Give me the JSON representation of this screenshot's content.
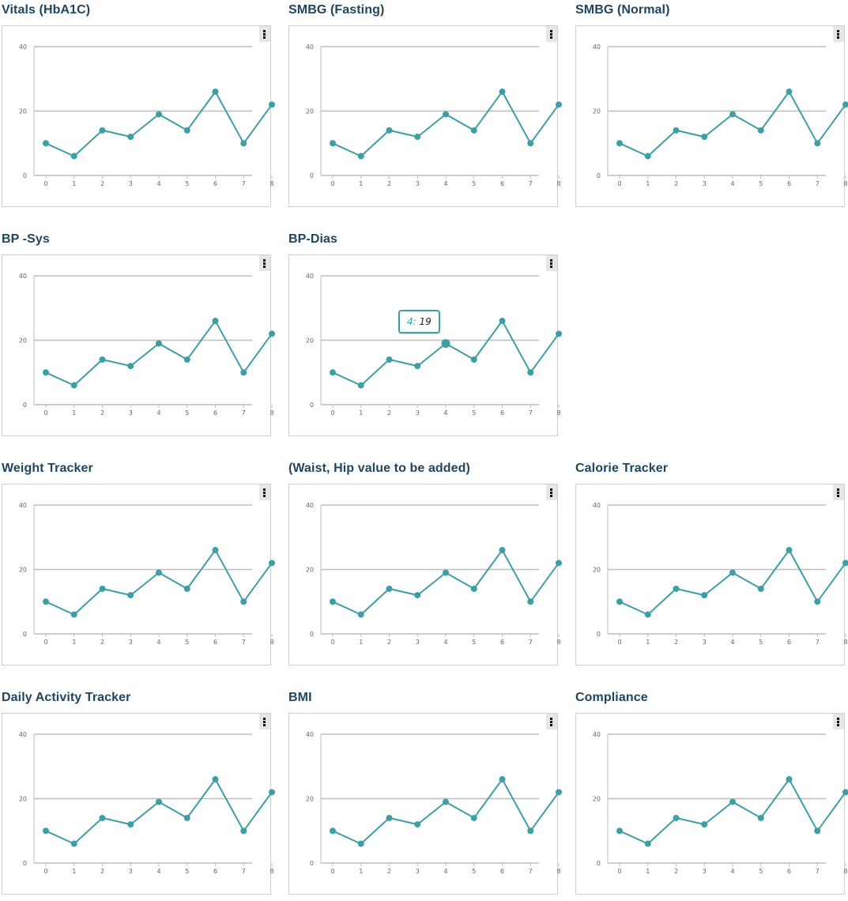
{
  "series_color": "#3d9ea6",
  "grid_color": "#bdbdbd",
  "title_color": "#1f4560",
  "chart_data": [
    {
      "type": "line",
      "title": "Vitals (HbA1C)",
      "x": [
        0,
        1,
        2,
        3,
        4,
        5,
        6,
        7,
        8
      ],
      "values": [
        10,
        6,
        14,
        12,
        19,
        14,
        26,
        10,
        22
      ],
      "xlim": [
        0,
        8
      ],
      "ylim": [
        0,
        40
      ],
      "yticks": [
        0,
        20,
        40
      ],
      "grid": true,
      "menu_icon": "vertical-ellipsis-icon"
    },
    {
      "type": "line",
      "title": "SMBG (Fasting)",
      "x": [
        0,
        1,
        2,
        3,
        4,
        5,
        6,
        7,
        8
      ],
      "values": [
        10,
        6,
        14,
        12,
        19,
        14,
        26,
        10,
        22
      ],
      "xlim": [
        0,
        8
      ],
      "ylim": [
        0,
        40
      ],
      "yticks": [
        0,
        20,
        40
      ],
      "grid": true,
      "menu_icon": "vertical-ellipsis-icon"
    },
    {
      "type": "line",
      "title": "SMBG (Normal)",
      "x": [
        0,
        1,
        2,
        3,
        4,
        5,
        6,
        7,
        8
      ],
      "values": [
        10,
        6,
        14,
        12,
        19,
        14,
        26,
        10,
        22
      ],
      "xlim": [
        0,
        8
      ],
      "ylim": [
        0,
        40
      ],
      "yticks": [
        0,
        20,
        40
      ],
      "grid": true,
      "menu_icon": "vertical-ellipsis-icon"
    },
    {
      "type": "line",
      "title": "BP -Sys",
      "x": [
        0,
        1,
        2,
        3,
        4,
        5,
        6,
        7,
        8
      ],
      "values": [
        10,
        6,
        14,
        12,
        19,
        14,
        26,
        10,
        22
      ],
      "xlim": [
        0,
        8
      ],
      "ylim": [
        0,
        40
      ],
      "yticks": [
        0,
        20,
        40
      ],
      "grid": true,
      "menu_icon": "vertical-ellipsis-icon"
    },
    {
      "type": "line",
      "title": "BP-Dias",
      "x": [
        0,
        1,
        2,
        3,
        4,
        5,
        6,
        7,
        8
      ],
      "values": [
        10,
        6,
        14,
        12,
        19,
        14,
        26,
        10,
        22
      ],
      "xlim": [
        0,
        8
      ],
      "ylim": [
        0,
        40
      ],
      "yticks": [
        0,
        20,
        40
      ],
      "grid": true,
      "menu_icon": "vertical-ellipsis-icon",
      "tooltip": {
        "x_label": "4:",
        "y_label": "19",
        "index": 4
      }
    },
    {
      "type": "line",
      "title": "Weight Tracker",
      "x": [
        0,
        1,
        2,
        3,
        4,
        5,
        6,
        7,
        8
      ],
      "values": [
        10,
        6,
        14,
        12,
        19,
        14,
        26,
        10,
        22
      ],
      "xlim": [
        0,
        8
      ],
      "ylim": [
        0,
        40
      ],
      "yticks": [
        0,
        20,
        40
      ],
      "grid": true,
      "menu_icon": "vertical-ellipsis-icon"
    },
    {
      "type": "line",
      "title": "(Waist, Hip value to be added)",
      "x": [
        0,
        1,
        2,
        3,
        4,
        5,
        6,
        7,
        8
      ],
      "values": [
        10,
        6,
        14,
        12,
        19,
        14,
        26,
        10,
        22
      ],
      "xlim": [
        0,
        8
      ],
      "ylim": [
        0,
        40
      ],
      "yticks": [
        0,
        20,
        40
      ],
      "grid": true,
      "menu_icon": "vertical-ellipsis-icon"
    },
    {
      "type": "line",
      "title": "Calorie Tracker",
      "x": [
        0,
        1,
        2,
        3,
        4,
        5,
        6,
        7,
        8
      ],
      "values": [
        10,
        6,
        14,
        12,
        19,
        14,
        26,
        10,
        22
      ],
      "xlim": [
        0,
        8
      ],
      "ylim": [
        0,
        40
      ],
      "yticks": [
        0,
        20,
        40
      ],
      "grid": true,
      "menu_icon": "vertical-ellipsis-icon"
    },
    {
      "type": "line",
      "title": "Daily Activity Tracker",
      "x": [
        0,
        1,
        2,
        3,
        4,
        5,
        6,
        7,
        8
      ],
      "values": [
        10,
        6,
        14,
        12,
        19,
        14,
        26,
        10,
        22
      ],
      "xlim": [
        0,
        8
      ],
      "ylim": [
        0,
        40
      ],
      "yticks": [
        0,
        20,
        40
      ],
      "grid": true,
      "menu_icon": "vertical-ellipsis-icon"
    },
    {
      "type": "line",
      "title": "BMI",
      "x": [
        0,
        1,
        2,
        3,
        4,
        5,
        6,
        7,
        8
      ],
      "values": [
        10,
        6,
        14,
        12,
        19,
        14,
        26,
        10,
        22
      ],
      "xlim": [
        0,
        8
      ],
      "ylim": [
        0,
        40
      ],
      "yticks": [
        0,
        20,
        40
      ],
      "grid": true,
      "menu_icon": "vertical-ellipsis-icon"
    },
    {
      "type": "line",
      "title": "Compliance",
      "x": [
        0,
        1,
        2,
        3,
        4,
        5,
        6,
        7,
        8
      ],
      "values": [
        10,
        6,
        14,
        12,
        19,
        14,
        26,
        10,
        22
      ],
      "xlim": [
        0,
        8
      ],
      "ylim": [
        0,
        40
      ],
      "yticks": [
        0,
        20,
        40
      ],
      "grid": true,
      "menu_icon": "vertical-ellipsis-icon"
    }
  ]
}
